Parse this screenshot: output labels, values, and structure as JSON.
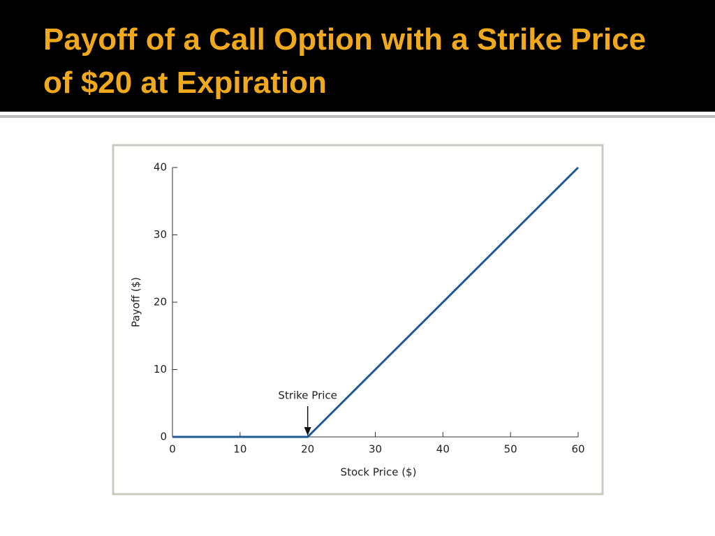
{
  "chart_data": {
    "type": "line",
    "title": "Payoff of a Call Option with a Strike Price of $20 at Expiration",
    "x_label": "Stock Price ($)",
    "y_label": "Payoff ($)",
    "x": [
      0,
      20,
      60
    ],
    "series": [
      {
        "color": "#1f5a96",
        "values": [
          0,
          0,
          40
        ]
      }
    ],
    "xlim": [
      0,
      60
    ],
    "ylim": [
      0,
      40
    ],
    "xticks": [
      0,
      10,
      20,
      30,
      40,
      50,
      60
    ],
    "yticks": [
      0,
      10,
      20,
      30,
      40
    ],
    "annotations": [
      {
        "text": "Strike Price",
        "x": 20,
        "y": 0
      }
    ]
  }
}
